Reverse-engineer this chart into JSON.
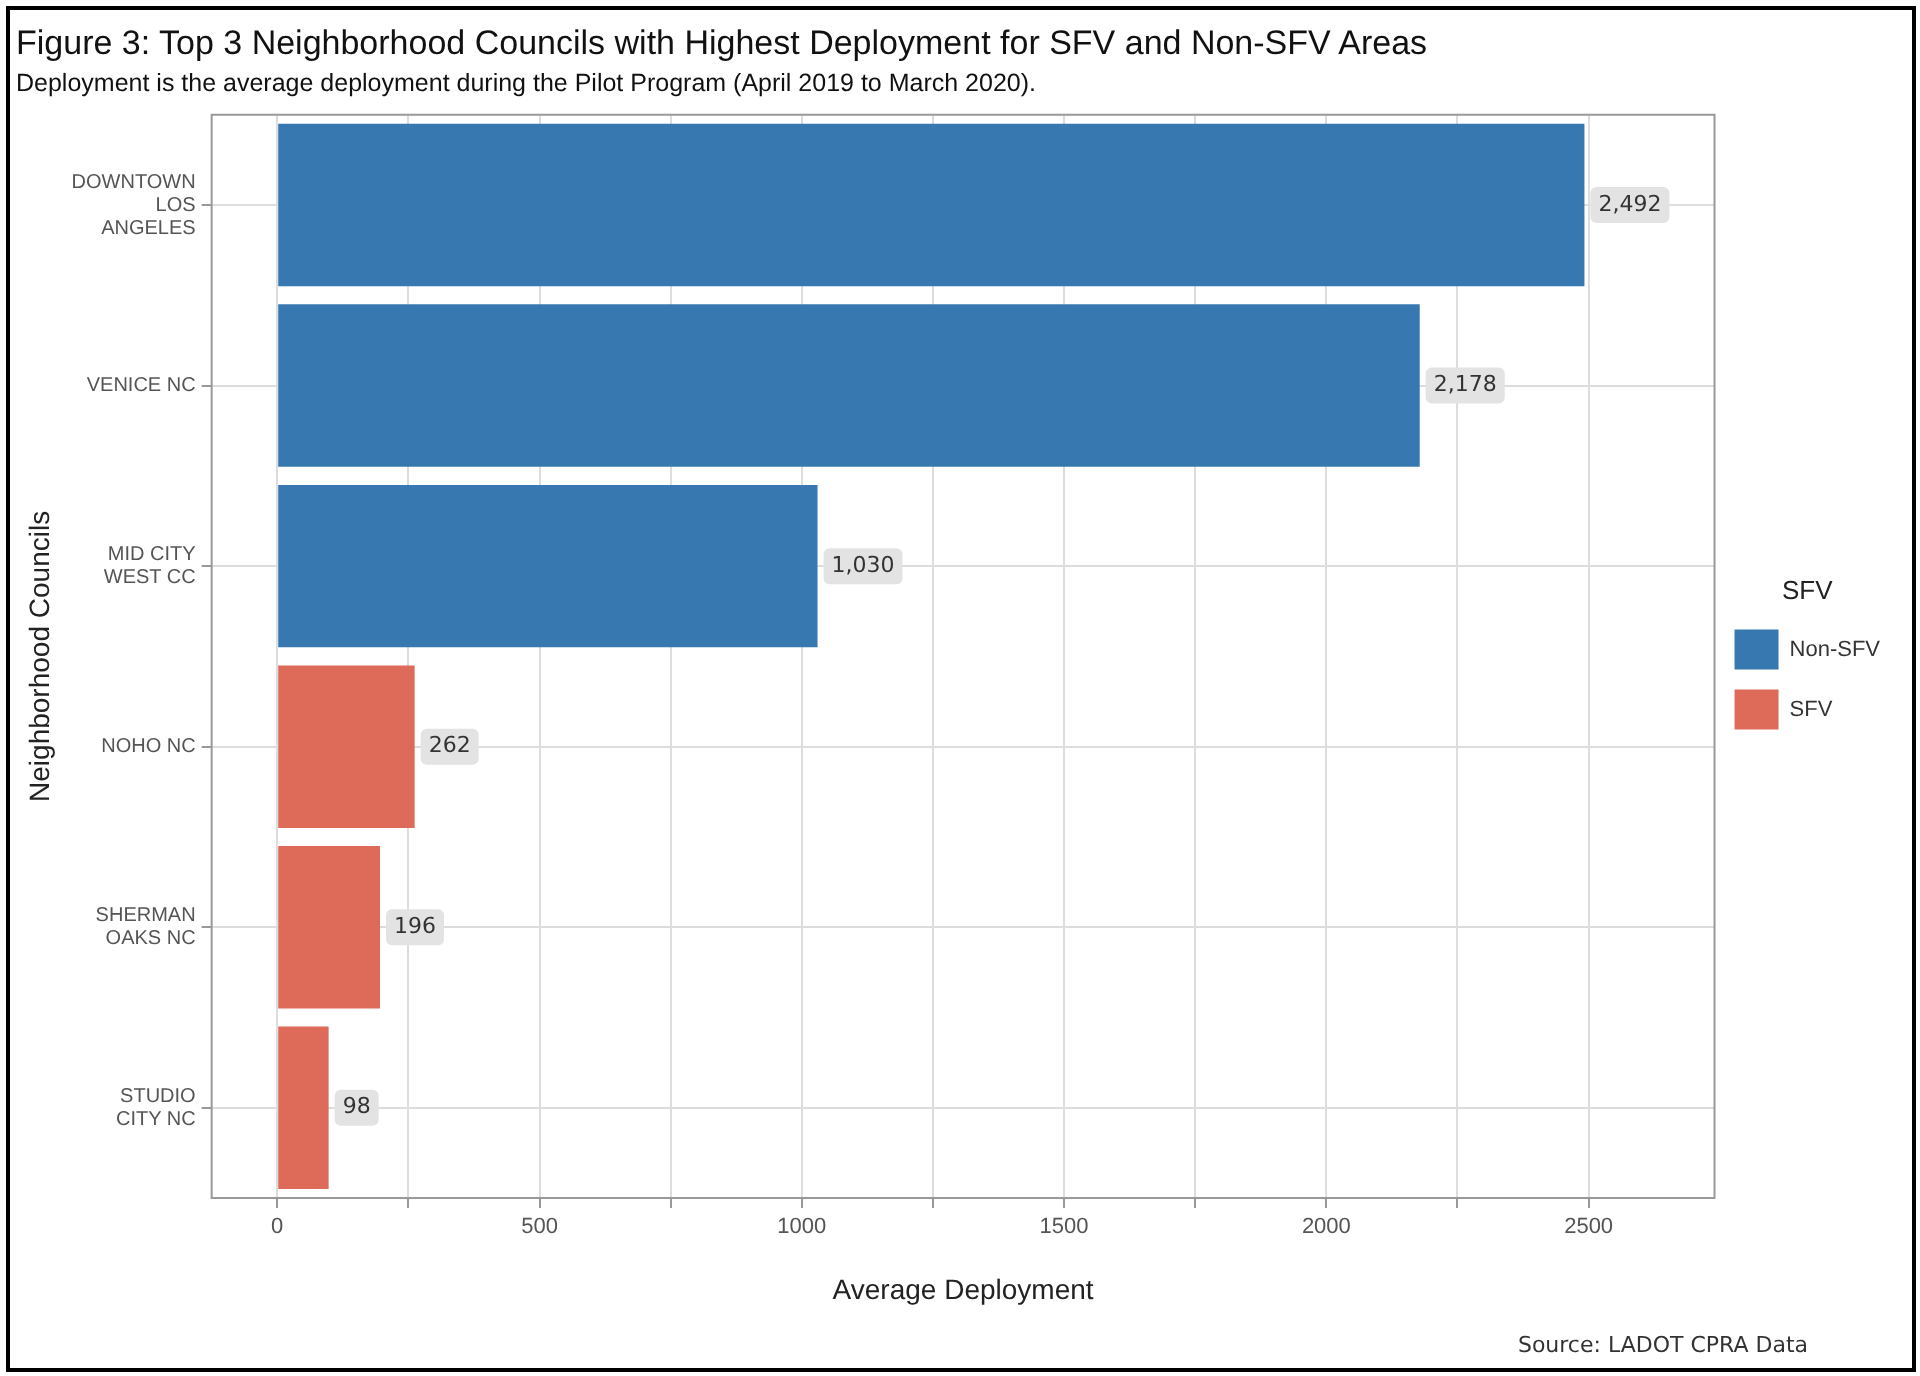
{
  "chart_data": {
    "type": "bar",
    "orientation": "horizontal",
    "title": "Figure 3: Top 3 Neighborhood Councils with Highest Deployment for SFV and Non-SFV Areas",
    "subtitle": "Deployment is the average deployment during the Pilot Program (April 2019 to March 2020).",
    "xlabel": "Average Deployment",
    "ylabel": "Neighborhood Councils",
    "legend_title": "SFV",
    "legend": "right",
    "grid": true,
    "categories": [
      "DOWNTOWN LOS ANGELES",
      "VENICE NC",
      "MID CITY WEST CC",
      "NOHO NC",
      "SHERMAN OAKS NC",
      "STUDIO CITY NC"
    ],
    "series": [
      {
        "name": "Non-SFV",
        "color": "#3778b0",
        "values": [
          2492,
          2178,
          1030,
          null,
          null,
          null
        ],
        "value_labels": [
          "2,492",
          "2,178",
          "1,030",
          null,
          null,
          null
        ]
      },
      {
        "name": "SFV",
        "color": "#de6b5a",
        "values": [
          null,
          null,
          null,
          262,
          196,
          98
        ],
        "value_labels": [
          null,
          null,
          null,
          "262",
          "196",
          "98"
        ]
      }
    ],
    "xlim": [
      -125,
      2740
    ],
    "xticks": [
      0,
      {
        "value": 250,
        "label": null
      },
      500,
      {
        "value": 750,
        "label": null
      },
      1000,
      {
        "value": 1250,
        "label": null
      },
      1500,
      {
        "value": 1750,
        "label": null
      },
      2000,
      {
        "value": 2250,
        "label": null
      },
      2500
    ],
    "annotations": [
      "Source: LADOT CPRA Data"
    ]
  }
}
